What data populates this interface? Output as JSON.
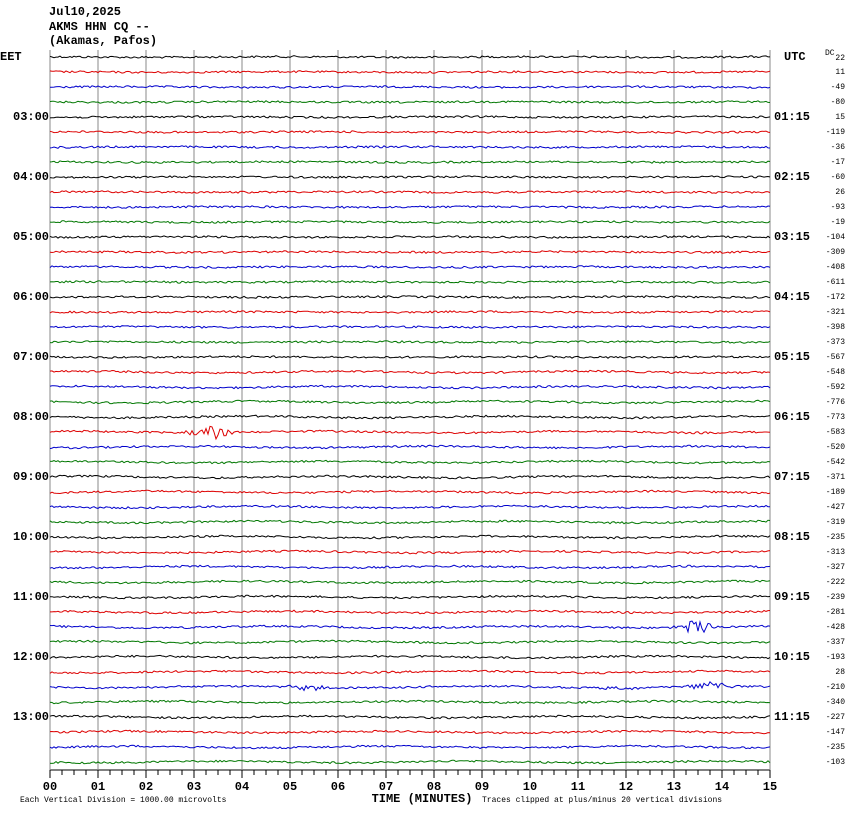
{
  "header": {
    "date": "Jul10,2025",
    "station": "AKMS HHN CQ --",
    "location": "(Akamas, Pafos)"
  },
  "left_axis": {
    "title": "EET",
    "labels": [
      "03:00",
      "04:00",
      "05:00",
      "06:00",
      "07:00",
      "08:00",
      "09:00",
      "10:00",
      "11:00",
      "12:00",
      "13:00"
    ]
  },
  "right_axis": {
    "title": "UTC",
    "labels": [
      "01:15",
      "02:15",
      "03:15",
      "04:15",
      "05:15",
      "06:15",
      "07:15",
      "08:15",
      "09:15",
      "10:15",
      "11:15"
    ]
  },
  "dc": {
    "title": "DC",
    "values": [
      22,
      11,
      -49,
      -80,
      15,
      -119,
      -36,
      -17,
      -60,
      26,
      -93,
      -19,
      -104,
      -309,
      -408,
      -611,
      -172,
      -321,
      -398,
      -373,
      -567,
      -548,
      -592,
      -776,
      -773,
      -583,
      -520,
      -542,
      -371,
      -189,
      -427,
      -319,
      -235,
      -313,
      -327,
      -222,
      -239,
      -281,
      -428,
      -337,
      -193,
      28,
      -210,
      -340,
      -227,
      -147,
      -235,
      -103
    ]
  },
  "x_axis": {
    "title": "TIME (MINUTES)",
    "labels": [
      "00",
      "01",
      "02",
      "03",
      "04",
      "05",
      "06",
      "07",
      "08",
      "09",
      "10",
      "11",
      "12",
      "13",
      "14",
      "15"
    ]
  },
  "footer": {
    "scale_note": "Each Vertical Division = 1000.00 microvolts",
    "clip_note": "Traces clipped at plus/minus 20 vertical divisions"
  }
}
